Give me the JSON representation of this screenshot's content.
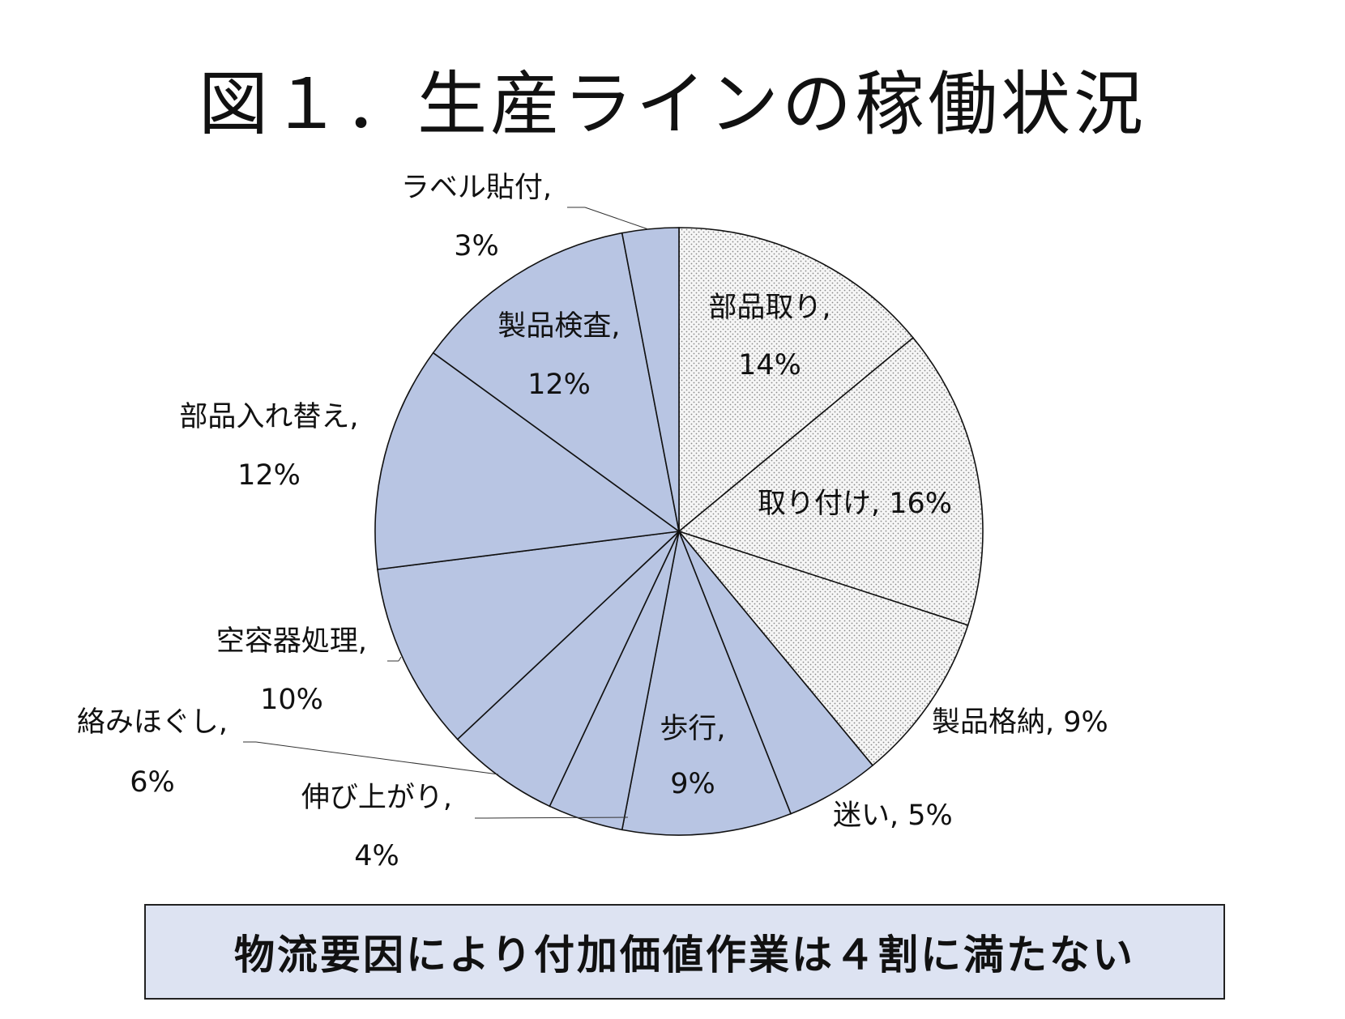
{
  "title": "図１．生産ラインの稼働状況",
  "footer": "物流要因により付加価値作業は４割に満たない",
  "colors": {
    "value_added": "#f4f4f4",
    "logistics": "#b8c5e3",
    "stroke": "#111111",
    "footer_bg": "#dde3f2"
  },
  "chart_data": {
    "type": "pie",
    "title": "図１．生産ラインの稼働状況",
    "unit": "%",
    "slices": [
      {
        "name": "部品取り",
        "value": 14,
        "label": "部品取り,",
        "value_label": "14%",
        "pattern": "dotted"
      },
      {
        "name": "取り付け",
        "value": 16,
        "label": "取り付け, 16%",
        "pattern": "dotted"
      },
      {
        "name": "製品格納",
        "value": 9,
        "label": "製品格納, 9%",
        "pattern": "dotted"
      },
      {
        "name": "迷い",
        "value": 5,
        "label": "迷い, 5%",
        "pattern": "solid"
      },
      {
        "name": "歩行",
        "value": 9,
        "label": "歩行,",
        "value_label": "9%",
        "pattern": "solid"
      },
      {
        "name": "伸び上がり",
        "value": 4,
        "label": "伸び上がり,",
        "value_label": "4%",
        "pattern": "solid"
      },
      {
        "name": "絡みほぐし",
        "value": 6,
        "label": "絡みほぐし,",
        "value_label": "6%",
        "pattern": "solid"
      },
      {
        "name": "空容器処理",
        "value": 10,
        "label": "空容器処理,",
        "value_label": "10%",
        "pattern": "solid"
      },
      {
        "name": "部品入れ替え",
        "value": 12,
        "label": "部品入れ替え,",
        "value_label": "12%",
        "pattern": "solid"
      },
      {
        "name": "製品検査",
        "value": 12,
        "label": "製品検査,",
        "value_label": "12%",
        "pattern": "solid"
      },
      {
        "name": "ラベル貼付",
        "value": 3,
        "label": "ラベル貼付,",
        "value_label": "3%",
        "pattern": "solid"
      }
    ]
  }
}
